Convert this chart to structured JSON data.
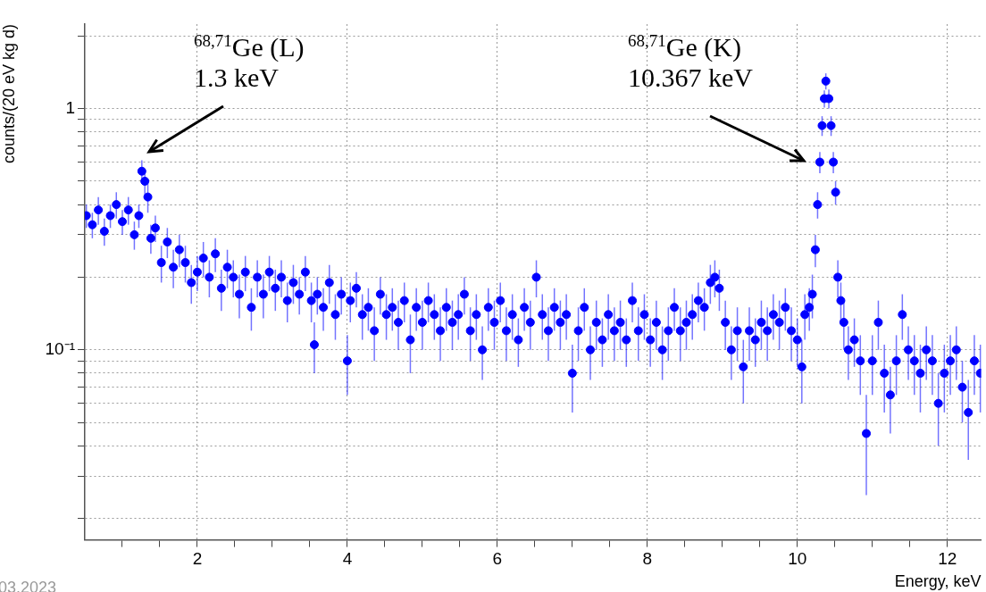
{
  "chart_data": {
    "type": "scatter",
    "xlabel": "Energy, keV",
    "ylabel": "counts/(20 eV kg d)",
    "xlim": [
      0.5,
      12.45
    ],
    "ylim": [
      0.0163,
      2.24
    ],
    "log": "y",
    "grid": true,
    "marker": "circle",
    "legend": false,
    "xticks": [
      {
        "value": 1,
        "label": null
      },
      {
        "value": 1.5,
        "label": null
      },
      2,
      {
        "value": 2.5,
        "label": null
      },
      {
        "value": 3,
        "label": null
      },
      {
        "value": 3.5,
        "label": null
      },
      4,
      {
        "value": 4.5,
        "label": null
      },
      {
        "value": 5,
        "label": null
      },
      {
        "value": 5.5,
        "label": null
      },
      6,
      {
        "value": 6.5,
        "label": null
      },
      {
        "value": 7,
        "label": null
      },
      {
        "value": 7.5,
        "label": null
      },
      8,
      {
        "value": 8.5,
        "label": null
      },
      {
        "value": 9,
        "label": null
      },
      {
        "value": 9.5,
        "label": null
      },
      10,
      {
        "value": 10.5,
        "label": null
      },
      {
        "value": 11,
        "label": null
      },
      {
        "value": 11.5,
        "label": null
      },
      12
    ],
    "yticks": [
      {
        "value": 0.02,
        "label": null
      },
      {
        "value": 0.03,
        "label": null
      },
      {
        "value": 0.04,
        "label": null
      },
      {
        "value": 0.05,
        "label": null
      },
      {
        "value": 0.06,
        "label": null
      },
      {
        "value": 0.07,
        "label": null
      },
      {
        "value": 0.08,
        "label": null
      },
      {
        "value": 0.09,
        "label": null
      },
      {
        "value": 0.1,
        "label": "10⁻¹"
      },
      {
        "value": 0.2,
        "label": null
      },
      {
        "value": 0.3,
        "label": null
      },
      {
        "value": 0.4,
        "label": null
      },
      {
        "value": 0.5,
        "label": null
      },
      {
        "value": 0.6,
        "label": null
      },
      {
        "value": 0.7,
        "label": null
      },
      {
        "value": 0.8,
        "label": null
      },
      {
        "value": 0.9,
        "label": null
      },
      1,
      {
        "value": 2,
        "label": null
      }
    ],
    "annotations": [
      "$^{68,71}$Ge (L)\n1.3 keV",
      "$^{68,71}$Ge (K)\n10.367 keV",
      "03.2023"
    ],
    "series": [
      {
        "color": "#0000ff",
        "x": [
          0.52,
          0.6,
          0.68,
          0.76,
          0.84,
          0.92,
          1.0,
          1.08,
          1.16,
          1.22,
          1.26,
          1.3,
          1.34,
          1.38,
          1.44,
          1.52,
          1.6,
          1.68,
          1.76,
          1.84,
          1.92,
          2.0,
          2.08,
          2.16,
          2.24,
          2.32,
          2.4,
          2.48,
          2.56,
          2.64,
          2.72,
          2.8,
          2.88,
          2.96,
          3.04,
          3.12,
          3.2,
          3.28,
          3.36,
          3.44,
          3.52,
          3.56,
          3.6,
          3.68,
          3.76,
          3.84,
          3.92,
          4.0,
          4.04,
          4.12,
          4.2,
          4.28,
          4.36,
          4.44,
          4.52,
          4.6,
          4.68,
          4.76,
          4.84,
          4.92,
          5.0,
          5.08,
          5.16,
          5.24,
          5.32,
          5.4,
          5.48,
          5.56,
          5.64,
          5.72,
          5.8,
          5.88,
          5.96,
          6.04,
          6.12,
          6.2,
          6.28,
          6.36,
          6.44,
          6.52,
          6.6,
          6.68,
          6.76,
          6.84,
          6.92,
          7.0,
          7.08,
          7.16,
          7.24,
          7.32,
          7.4,
          7.48,
          7.56,
          7.64,
          7.72,
          7.8,
          7.88,
          7.96,
          8.04,
          8.12,
          8.2,
          8.28,
          8.36,
          8.44,
          8.52,
          8.6,
          8.68,
          8.76,
          8.84,
          8.9,
          8.96,
          9.04,
          9.12,
          9.2,
          9.28,
          9.36,
          9.44,
          9.52,
          9.6,
          9.68,
          9.76,
          9.84,
          9.92,
          10.0,
          10.06,
          10.1,
          10.16,
          10.2,
          10.24,
          10.27,
          10.3,
          10.33,
          10.36,
          10.38,
          10.42,
          10.45,
          10.48,
          10.51,
          10.54,
          10.58,
          10.62,
          10.68,
          10.76,
          10.84,
          10.92,
          11.0,
          11.08,
          11.16,
          11.24,
          11.32,
          11.4,
          11.48,
          11.56,
          11.64,
          11.72,
          11.8,
          11.88,
          11.96,
          12.04,
          12.12,
          12.2,
          12.28,
          12.36,
          12.44
        ],
        "values": [
          0.36,
          0.33,
          0.38,
          0.31,
          0.36,
          0.4,
          0.34,
          0.38,
          0.3,
          0.36,
          0.55,
          0.5,
          0.43,
          0.29,
          0.32,
          0.23,
          0.28,
          0.22,
          0.26,
          0.23,
          0.19,
          0.21,
          0.24,
          0.2,
          0.25,
          0.18,
          0.22,
          0.2,
          0.17,
          0.21,
          0.15,
          0.2,
          0.17,
          0.21,
          0.18,
          0.2,
          0.16,
          0.19,
          0.17,
          0.21,
          0.16,
          0.105,
          0.17,
          0.15,
          0.19,
          0.14,
          0.17,
          0.09,
          0.16,
          0.18,
          0.14,
          0.15,
          0.12,
          0.17,
          0.14,
          0.15,
          0.13,
          0.16,
          0.11,
          0.15,
          0.13,
          0.16,
          0.14,
          0.12,
          0.15,
          0.13,
          0.14,
          0.17,
          0.12,
          0.14,
          0.1,
          0.15,
          0.13,
          0.16,
          0.12,
          0.14,
          0.11,
          0.15,
          0.13,
          0.2,
          0.14,
          0.12,
          0.15,
          0.13,
          0.14,
          0.08,
          0.12,
          0.15,
          0.1,
          0.13,
          0.11,
          0.14,
          0.12,
          0.13,
          0.11,
          0.16,
          0.12,
          0.14,
          0.11,
          0.13,
          0.1,
          0.12,
          0.15,
          0.12,
          0.13,
          0.14,
          0.16,
          0.15,
          0.19,
          0.2,
          0.18,
          0.13,
          0.1,
          0.12,
          0.085,
          0.12,
          0.11,
          0.13,
          0.12,
          0.14,
          0.13,
          0.15,
          0.12,
          0.11,
          0.085,
          0.14,
          0.15,
          0.17,
          0.26,
          0.4,
          0.6,
          0.85,
          1.1,
          1.3,
          1.1,
          0.85,
          0.6,
          0.45,
          0.2,
          0.16,
          0.13,
          0.1,
          0.11,
          0.09,
          0.045,
          0.09,
          0.13,
          0.08,
          0.065,
          0.09,
          0.14,
          0.1,
          0.09,
          0.08,
          0.1,
          0.09,
          0.06,
          0.08,
          0.09,
          0.1,
          0.07,
          0.055,
          0.09,
          0.08
        ],
        "errors": [
          0.04,
          0.04,
          0.05,
          0.04,
          0.04,
          0.05,
          0.04,
          0.05,
          0.04,
          0.04,
          0.06,
          0.06,
          0.06,
          0.04,
          0.04,
          0.04,
          0.04,
          0.04,
          0.04,
          0.04,
          0.035,
          0.035,
          0.04,
          0.035,
          0.04,
          0.035,
          0.04,
          0.035,
          0.035,
          0.035,
          0.03,
          0.035,
          0.035,
          0.035,
          0.035,
          0.035,
          0.03,
          0.035,
          0.03,
          0.035,
          0.03,
          0.025,
          0.03,
          0.03,
          0.035,
          0.03,
          0.03,
          0.025,
          0.03,
          0.03,
          0.03,
          0.03,
          0.03,
          0.03,
          0.03,
          0.03,
          0.03,
          0.03,
          0.03,
          0.03,
          0.03,
          0.03,
          0.03,
          0.03,
          0.03,
          0.03,
          0.03,
          0.03,
          0.03,
          0.03,
          0.025,
          0.03,
          0.03,
          0.03,
          0.03,
          0.03,
          0.025,
          0.03,
          0.03,
          0.035,
          0.03,
          0.03,
          0.03,
          0.03,
          0.03,
          0.025,
          0.03,
          0.03,
          0.025,
          0.03,
          0.025,
          0.03,
          0.03,
          0.03,
          0.025,
          0.03,
          0.03,
          0.03,
          0.025,
          0.03,
          0.025,
          0.03,
          0.03,
          0.03,
          0.03,
          0.03,
          0.03,
          0.03,
          0.035,
          0.035,
          0.035,
          0.03,
          0.025,
          0.03,
          0.025,
          0.03,
          0.025,
          0.03,
          0.03,
          0.03,
          0.03,
          0.03,
          0.03,
          0.025,
          0.025,
          0.03,
          0.03,
          0.035,
          0.04,
          0.05,
          0.06,
          0.08,
          0.09,
          0.1,
          0.1,
          0.08,
          0.06,
          0.05,
          0.035,
          0.03,
          0.03,
          0.025,
          0.025,
          0.025,
          0.02,
          0.025,
          0.03,
          0.025,
          0.02,
          0.025,
          0.03,
          0.025,
          0.025,
          0.025,
          0.025,
          0.025,
          0.02,
          0.025,
          0.025,
          0.025,
          0.02,
          0.02,
          0.025,
          0.025
        ]
      }
    ]
  }
}
